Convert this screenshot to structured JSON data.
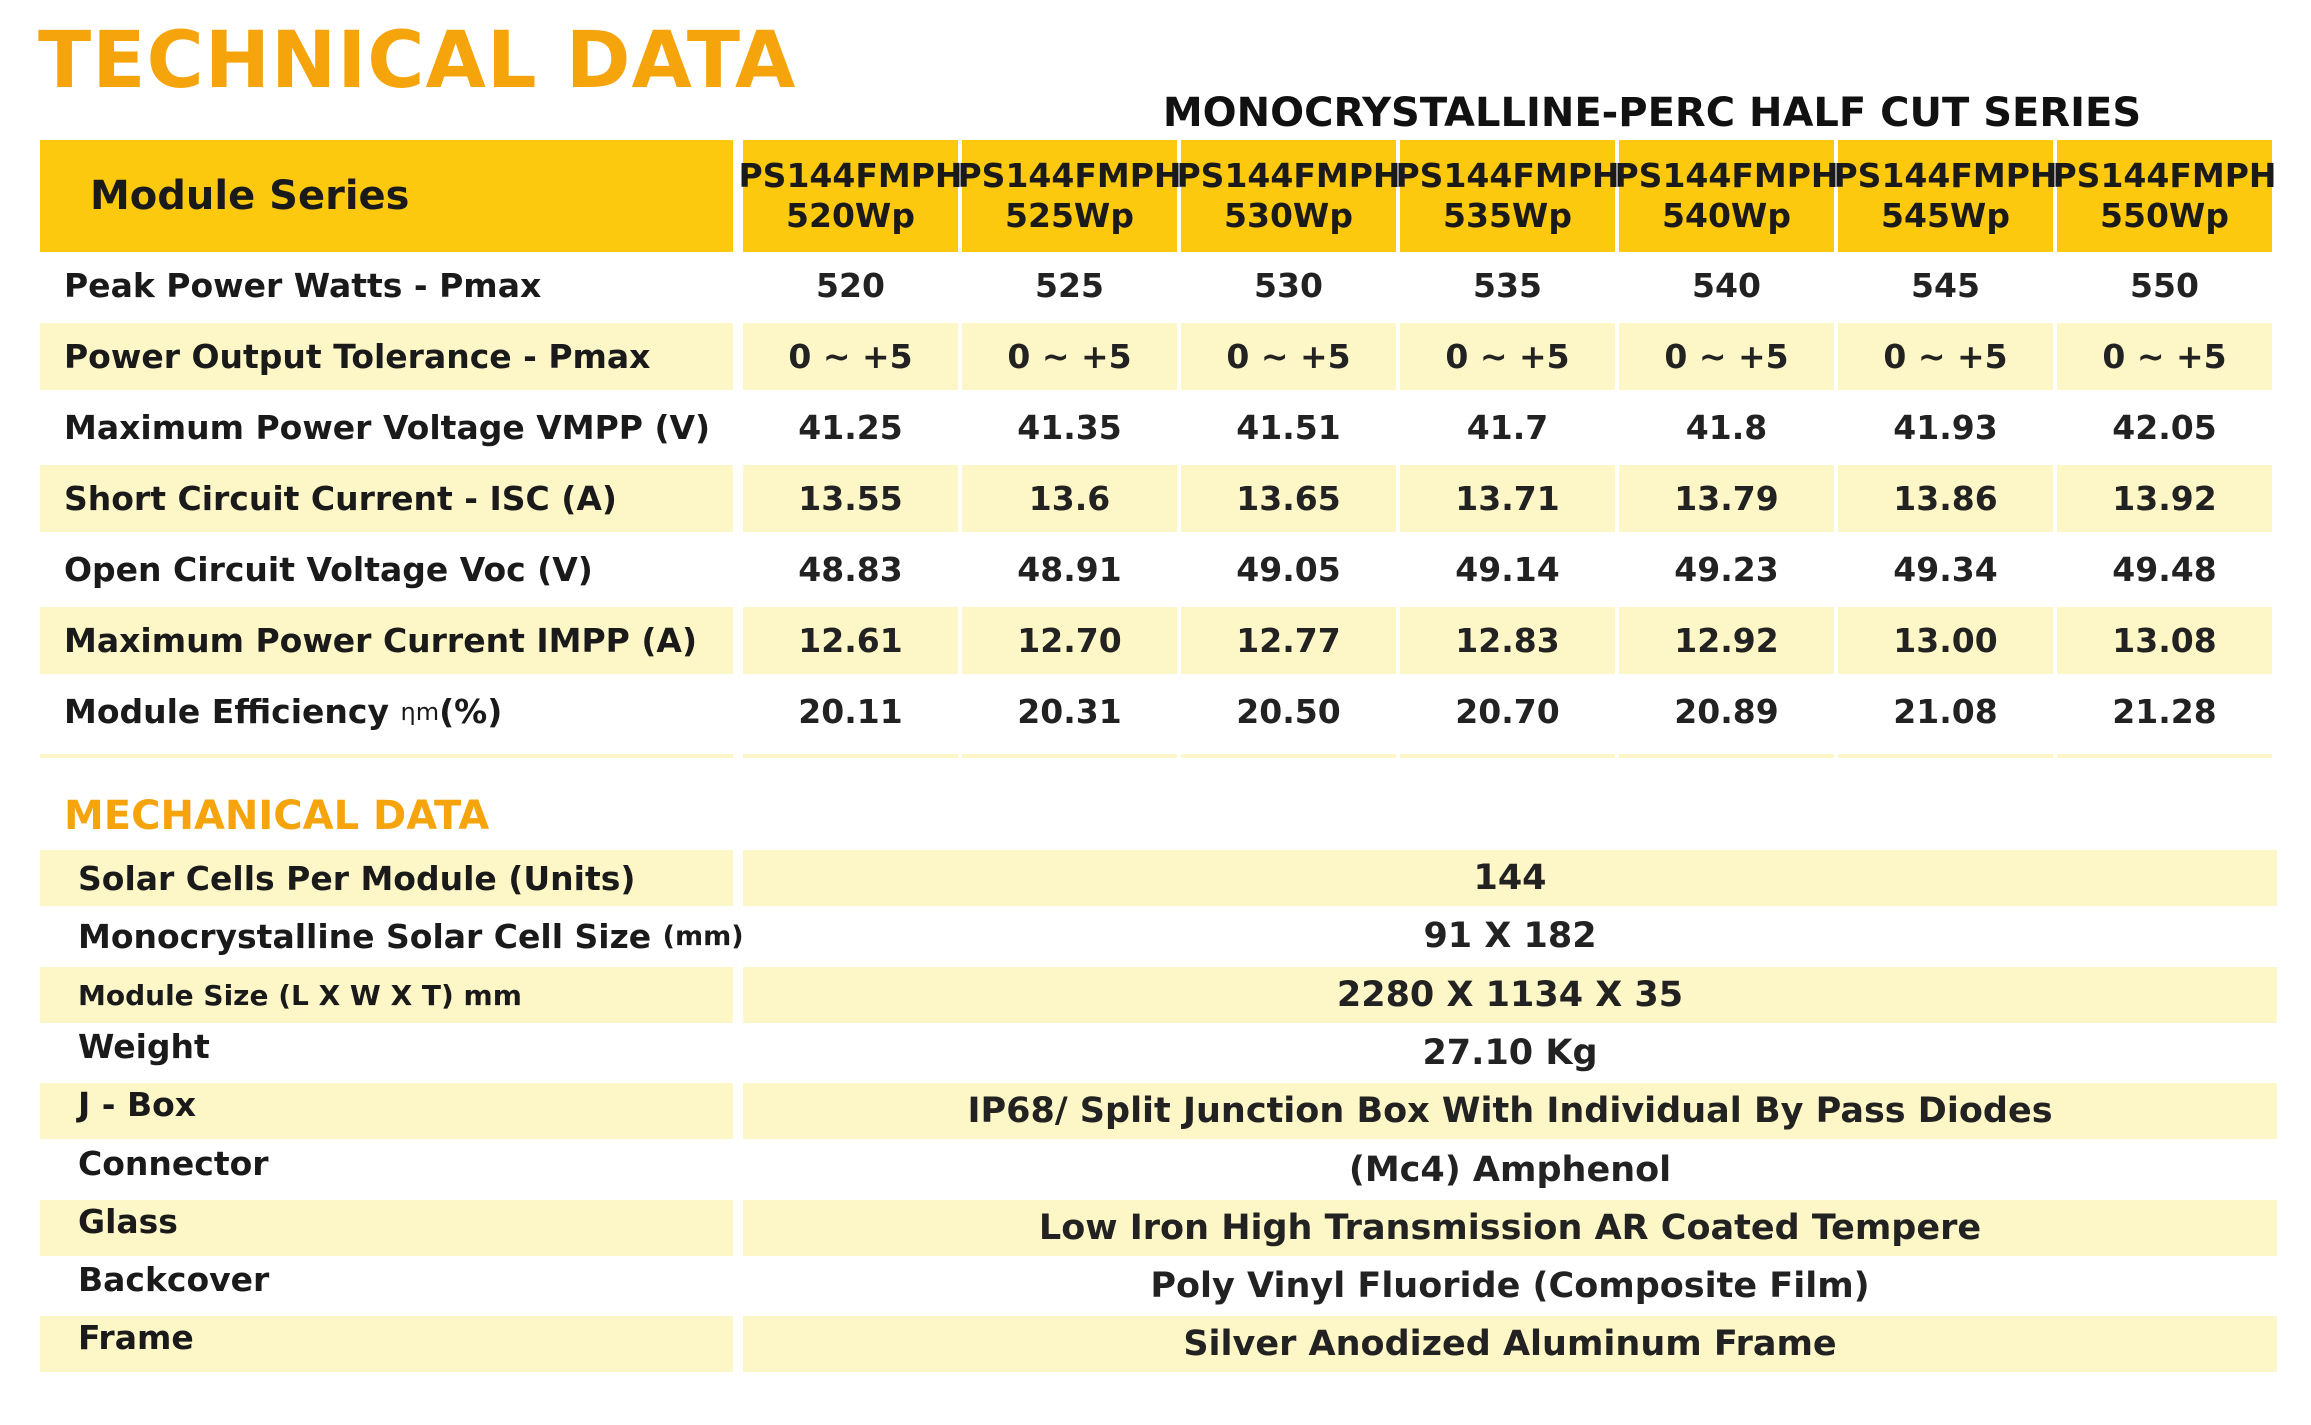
{
  "title": "TECHNICAL DATA",
  "series_title": "MONOCRYSTALLINE-PERC HALF CUT SERIES",
  "header": {
    "label": "Module Series",
    "models": [
      {
        "name": "PS144FMPH",
        "power": "520Wp"
      },
      {
        "name": "PS144FMPH",
        "power": "525Wp"
      },
      {
        "name": "PS144FMPH",
        "power": "530Wp"
      },
      {
        "name": "PS144FMPH",
        "power": "535Wp"
      },
      {
        "name": "PS144FMPH",
        "power": "540Wp"
      },
      {
        "name": "PS144FMPH",
        "power": "545Wp"
      },
      {
        "name": "PS144FMPH",
        "power": "550Wp"
      }
    ]
  },
  "electrical_rows": [
    {
      "label": "Peak Power Watts - Pmax",
      "values": [
        "520",
        "525",
        "530",
        "535",
        "540",
        "545",
        "550"
      ]
    },
    {
      "label": "Power Output Tolerance - Pmax",
      "values": [
        "0 ~ +5",
        "0 ~ +5",
        "0 ~ +5",
        "0 ~ +5",
        "0 ~ +5",
        "0 ~ +5",
        "0 ~ +5"
      ]
    },
    {
      "label": "Maximum Power Voltage VMPP (V)",
      "values": [
        "41.25",
        "41.35",
        "41.51",
        "41.7",
        "41.8",
        "41.93",
        "42.05"
      ]
    },
    {
      "label": "Short Circuit Current - ISC (A)",
      "values": [
        "13.55",
        "13.6",
        "13.65",
        "13.71",
        "13.79",
        "13.86",
        "13.92"
      ]
    },
    {
      "label": "Open Circuit Voltage Voc (V)",
      "values": [
        "48.83",
        "48.91",
        "49.05",
        "49.14",
        "49.23",
        "49.34",
        "49.48"
      ]
    },
    {
      "label": "Maximum Power Current IMPP (A)",
      "values": [
        "12.61",
        "12.70",
        "12.77",
        "12.83",
        "12.92",
        "13.00",
        "13.08"
      ]
    },
    {
      "label": "Module Efficiency",
      "label_symbol": "ηm",
      "label_suffix": "(%)",
      "values": [
        "20.11",
        "20.31",
        "20.50",
        "20.70",
        "20.89",
        "21.08",
        "21.28"
      ]
    }
  ],
  "mechanical": {
    "title": "MECHANICAL DATA",
    "rows": [
      {
        "label": "Solar Cells Per Module (Units)",
        "value": "144"
      },
      {
        "label": "Monocrystalline Solar Cell Size",
        "label_unit": "(mm)",
        "value": "91 X 182"
      },
      {
        "label": "Module Size (L X W X T) mm",
        "value": "2280 X 1134 X 35"
      },
      {
        "label": "Weight",
        "value": "27.10 Kg"
      },
      {
        "label": "J - Box",
        "value": "IP68/ Split Junction Box With Individual By Pass Diodes"
      },
      {
        "label": "Connector",
        "value": "(Mc4) Amphenol"
      },
      {
        "label": "Glass",
        "value": "Low Iron High Transmission AR Coated Tempere"
      },
      {
        "label": "Backcover",
        "value": "Poly Vinyl Fluoride (Composite Film)"
      },
      {
        "label": "Frame",
        "value": "Silver Anodized Aluminum Frame"
      }
    ]
  },
  "colors": {
    "accent": "#f5a50b",
    "header_bg": "#fdc90f",
    "band_bg": "#fdf6c6"
  }
}
